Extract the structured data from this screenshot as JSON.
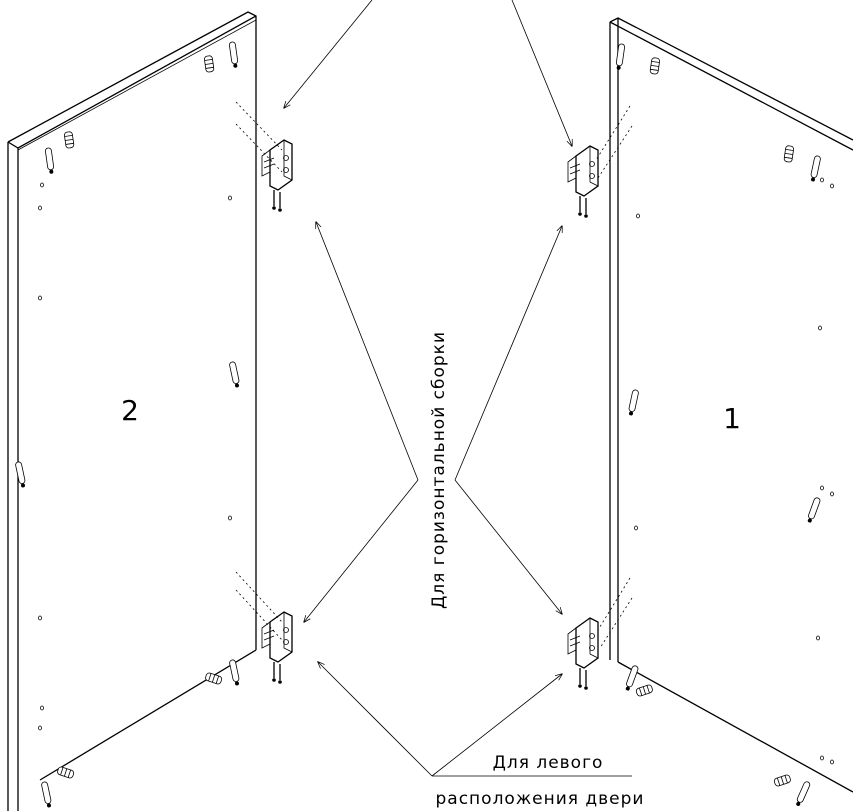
{
  "panels": [
    {
      "label": "2"
    },
    {
      "label": "1"
    }
  ],
  "annotations": {
    "horizontal": "Для горизонтальной сборки",
    "left_door_line1": "Для левого",
    "left_door_line2": "расположения двери"
  }
}
